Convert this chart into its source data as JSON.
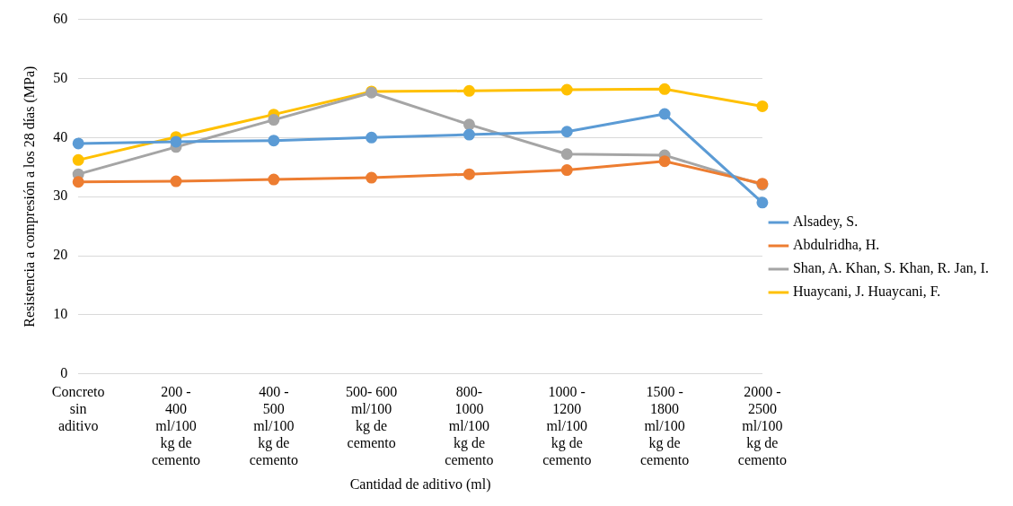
{
  "chart_data": {
    "type": "line",
    "xlabel": "Cantidad de aditivo (ml)",
    "ylabel": "Resistencia a compresión a los 28 días (MPa)",
    "categories": [
      "Concreto sin aditivo",
      "200 - 400 ml/100 kg de cemento",
      "400 - 500 ml/100 kg de cemento",
      "500- 600 ml/100 kg de cemento",
      "800- 1000 ml/100 kg de cemento",
      "1000 - 1200 ml/100 kg de cemento",
      "1500 - 1800 ml/100 kg de cemento",
      "2000 - 2500 ml/100 kg de cemento"
    ],
    "series": [
      {
        "name": "Alsadey, S.",
        "color": "#5b9bd5",
        "values": [
          39,
          39.3,
          39.5,
          40,
          40.5,
          41,
          44,
          29
        ]
      },
      {
        "name": "Abdulridha, H.",
        "color": "#ed7d31",
        "values": [
          32.5,
          32.6,
          32.9,
          33.2,
          33.8,
          34.5,
          36,
          32.2
        ]
      },
      {
        "name": "Shan, A. Khan, S. Khan, R. Jan, I.",
        "color": "#a5a5a5",
        "values": [
          33.8,
          38.4,
          43,
          47.6,
          42.2,
          37.2,
          37,
          32
        ]
      },
      {
        "name": "Huaycani, J. Huaycani, F.",
        "color": "#ffc000",
        "values": [
          36.2,
          40.1,
          43.9,
          47.8,
          47.9,
          48.1,
          48.2,
          45.3
        ]
      }
    ],
    "ylim": [
      0,
      60
    ],
    "yticks": [
      0,
      10,
      20,
      30,
      40,
      50,
      60
    ],
    "grid": "y",
    "legend": "right",
    "marker": "circle",
    "line_style": "solid"
  }
}
